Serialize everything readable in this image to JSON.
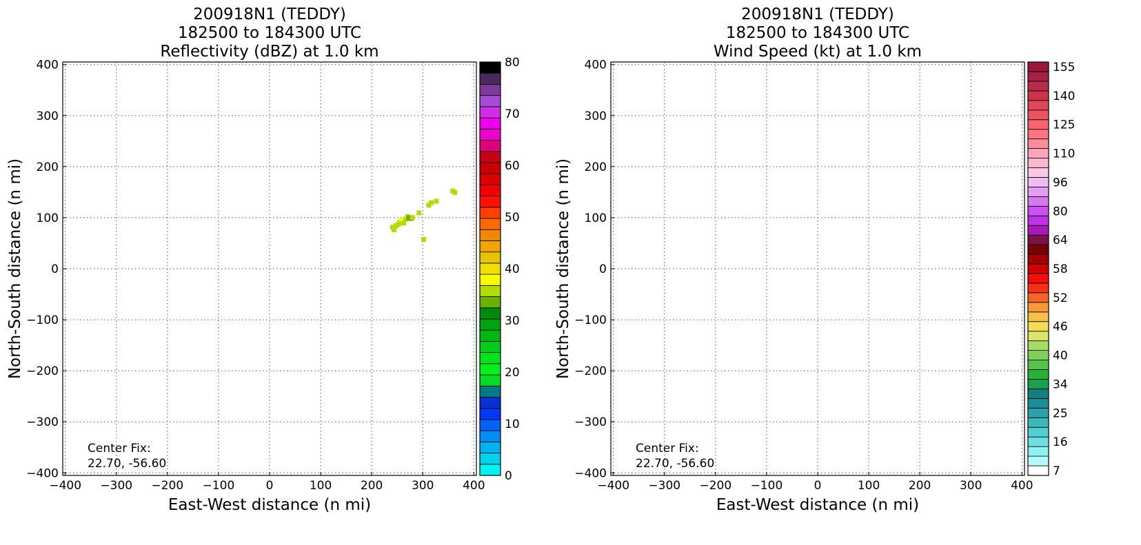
{
  "chart_data": [
    {
      "type": "heatmap",
      "title": [
        "200918N1 (TEDDY)",
        "182500 to 184300 UTC",
        "Reflectivity (dBZ) at 1.0 km"
      ],
      "xlabel": "East-West distance (n mi)",
      "ylabel": "North-South distance (n mi)",
      "xlim": [
        -405,
        405
      ],
      "ylim": [
        -405,
        405
      ],
      "xticks": [
        -400,
        -300,
        -200,
        -100,
        0,
        100,
        200,
        300,
        400
      ],
      "yticks": [
        -400,
        -300,
        -200,
        -100,
        0,
        100,
        200,
        300,
        400
      ],
      "grid": true,
      "annotation": [
        "Center Fix:",
        "22.70, -56.60"
      ],
      "colorbar": {
        "label": "dBZ",
        "min": 0,
        "max": 80,
        "tick_values": [
          0,
          10,
          20,
          30,
          40,
          50,
          60,
          70,
          80
        ],
        "colors": [
          "#00f3f3",
          "#00d2ea",
          "#00b2f0",
          "#008ef4",
          "#0062f6",
          "#0038f4",
          "#0c2fd4",
          "#007a88",
          "#00dd22",
          "#00f21c",
          "#00e41a",
          "#00cf17",
          "#00b814",
          "#00a210",
          "#008b0d",
          "#6db100",
          "#b0dc00",
          "#fafa00",
          "#f0e000",
          "#e9c300",
          "#f0a500",
          "#f08800",
          "#ff6a00",
          "#ff4000",
          "#ff1000",
          "#f40000",
          "#dc0000",
          "#cc0000",
          "#c80014",
          "#e0007a",
          "#f000d0",
          "#ee00ee",
          "#cf2ee6",
          "#a84bd5",
          "#7d3a9c",
          "#4a2a5a",
          "#000000"
        ]
      },
      "echoes": [
        {
          "x": 240,
          "y": 82,
          "dbz": 36
        },
        {
          "x": 247,
          "y": 85,
          "dbz": 36
        },
        {
          "x": 243,
          "y": 77,
          "dbz": 36
        },
        {
          "x": 255,
          "y": 92,
          "dbz": 36
        },
        {
          "x": 258,
          "y": 95,
          "dbz": 37
        },
        {
          "x": 262,
          "y": 90,
          "dbz": 36
        },
        {
          "x": 252,
          "y": 88,
          "dbz": 36
        },
        {
          "x": 266,
          "y": 98,
          "dbz": 36
        },
        {
          "x": 270,
          "y": 103,
          "dbz": 36
        },
        {
          "x": 272,
          "y": 100,
          "dbz": 34
        },
        {
          "x": 276,
          "y": 99,
          "dbz": 33
        },
        {
          "x": 279,
          "y": 101,
          "dbz": 35
        },
        {
          "x": 292,
          "y": 110,
          "dbz": 36
        },
        {
          "x": 311,
          "y": 125,
          "dbz": 36
        },
        {
          "x": 316,
          "y": 130,
          "dbz": 36
        },
        {
          "x": 326,
          "y": 133,
          "dbz": 36
        },
        {
          "x": 358,
          "y": 153,
          "dbz": 36
        },
        {
          "x": 362,
          "y": 150,
          "dbz": 36
        },
        {
          "x": 301,
          "y": 58,
          "dbz": 36
        }
      ]
    },
    {
      "type": "heatmap",
      "title": [
        "200918N1 (TEDDY)",
        "182500 to 184300 UTC",
        "Wind Speed (kt) at 1.0 km"
      ],
      "xlabel": "East-West distance (n mi)",
      "ylabel": "North-South distance (n mi)",
      "xlim": [
        -405,
        405
      ],
      "ylim": [
        -405,
        405
      ],
      "xticks": [
        -400,
        -300,
        -200,
        -100,
        0,
        100,
        200,
        300,
        400
      ],
      "yticks": [
        -400,
        -300,
        -200,
        -100,
        0,
        100,
        200,
        300,
        400
      ],
      "grid": true,
      "annotation": [
        "Center Fix:",
        "22.70, -56.60"
      ],
      "colorbar": {
        "label": "kt",
        "tick_labels": [
          "7",
          "16",
          "25",
          "34",
          "40",
          "46",
          "52",
          "58",
          "64",
          "80",
          "96",
          "110",
          "125",
          "140",
          "155"
        ],
        "tick_bin_index": [
          0,
          3,
          6,
          9,
          12,
          15,
          18,
          21,
          24,
          27,
          30,
          33,
          36,
          39,
          42
        ],
        "colors": [
          "#ffffff",
          "#b4fafa",
          "#8ef2f2",
          "#6ee0e0",
          "#52cfd0",
          "#3ab8bc",
          "#2aa2aa",
          "#1e8c9a",
          "#12807c",
          "#18a050",
          "#28b23c",
          "#52c44a",
          "#7ed05a",
          "#a6dc64",
          "#dce46c",
          "#f4dc5a",
          "#f8c048",
          "#f89838",
          "#f86428",
          "#f83018",
          "#f80c0c",
          "#d00000",
          "#a00000",
          "#780000",
          "#7a1248",
          "#a81ab8",
          "#c032e6",
          "#cc50ee",
          "#d878f0",
          "#e49cf4",
          "#f0bcf2",
          "#f8c8e4",
          "#f8b8d0",
          "#fca4bc",
          "#fc8c9c",
          "#fc7480",
          "#f86470",
          "#ec5260",
          "#e04858",
          "#cc3448",
          "#b82c48",
          "#a82044",
          "#981840"
        ]
      }
    }
  ]
}
